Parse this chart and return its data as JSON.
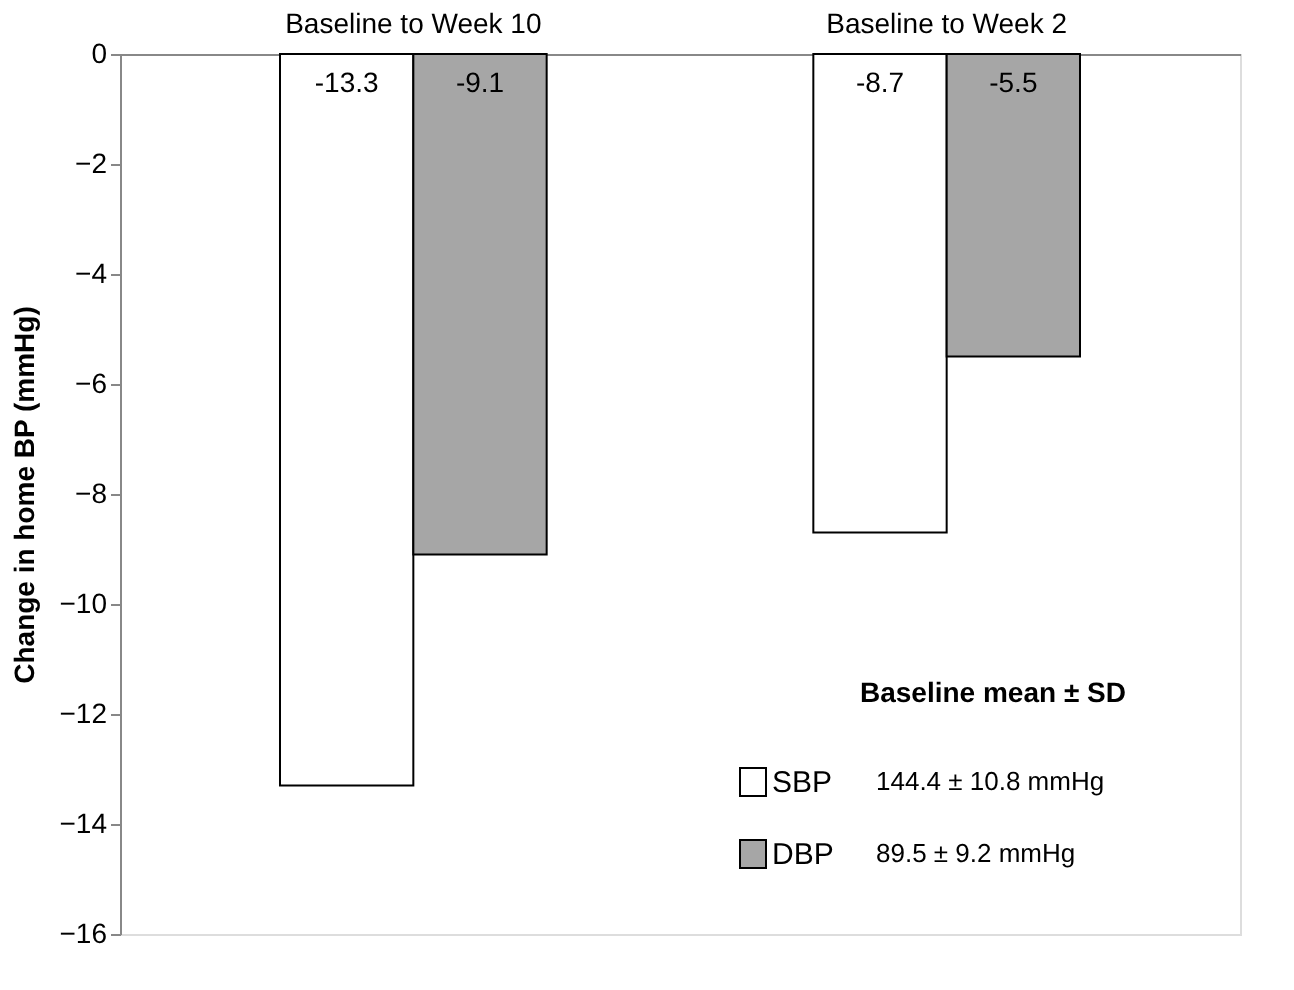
{
  "chart_data": {
    "type": "bar",
    "categories": [
      "Baseline to Week 10",
      "Baseline to Week 2"
    ],
    "ylabel": "Change in home BP (mmHg)",
    "ylim": [
      -16,
      0
    ],
    "yticks": [
      0,
      -2,
      -4,
      -6,
      -8,
      -10,
      -12,
      -14,
      -16
    ],
    "series": [
      {
        "name": "SBP",
        "color": "#ffffff",
        "values": [
          -13.3,
          -8.7
        ]
      },
      {
        "name": "DBP",
        "color": "#a6a6a6",
        "values": [
          -9.1,
          -5.5
        ]
      }
    ],
    "data_labels": true,
    "grid": false,
    "legend": "bottom right",
    "legend_title": "Baseline mean ± SD",
    "annotations": [
      "144.4 ± 10.8 mmHg",
      "89.5 ± 9.2 mmHg"
    ]
  }
}
